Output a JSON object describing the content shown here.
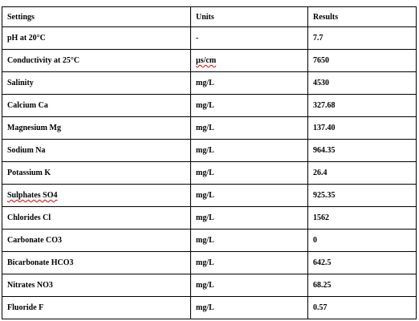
{
  "table": {
    "header": [
      "Settings",
      "Units",
      "Results"
    ],
    "rows": [
      [
        "pH at 20°C",
        "-",
        "7.7"
      ],
      [
        "Conductivity at 25°C",
        "µs/cm",
        "7650"
      ],
      [
        "Salinity",
        "mg/L",
        "4530"
      ],
      [
        "Calcium Ca",
        "mg/L",
        "327.68"
      ],
      [
        "Magnesium Mg",
        "mg/L",
        "137.40"
      ],
      [
        "Sodium Na",
        "mg/L",
        "964.35"
      ],
      [
        "Potassium K",
        "mg/L",
        "26.4"
      ],
      [
        "Sulphates SO4",
        "mg/L",
        "925.35"
      ],
      [
        "Chlorides Cl",
        "mg/L",
        "1562"
      ],
      [
        "Carbonate CO3",
        "mg/L",
        "0"
      ],
      [
        "Bicarbonate HCO3",
        "mg/L",
        "642.5"
      ],
      [
        "Nitrates NO3",
        "mg/L",
        "68.25"
      ],
      [
        "Fluoride F",
        "mg/L",
        "0.57"
      ]
    ]
  }
}
